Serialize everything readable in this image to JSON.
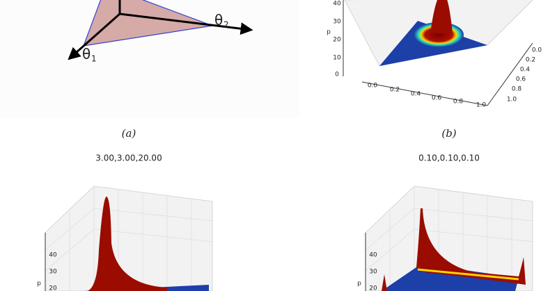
{
  "panels": [
    {
      "caption": "(a)",
      "labels": [
        "θ",
        "1",
        "θ",
        "2"
      ]
    },
    {
      "caption": "(b)",
      "axis_label": "p",
      "z_ticks": [
        "0",
        "10",
        "20",
        "30",
        "40"
      ],
      "x_ticks": [
        "0.0",
        "0.2",
        "0.4",
        "0.6",
        "0.8",
        "1.0"
      ],
      "y_ticks": [
        "0.0",
        "0.2",
        "0.4",
        "0.6",
        "0.8",
        "1.0"
      ]
    },
    {
      "title": "3.00,3.00,20.00",
      "axis_label": "p",
      "z_ticks": [
        "40",
        "30",
        "20"
      ]
    },
    {
      "title": "0.10,0.10,0.10",
      "axis_label": "p",
      "z_ticks": [
        "40",
        "30",
        "20"
      ]
    }
  ]
}
